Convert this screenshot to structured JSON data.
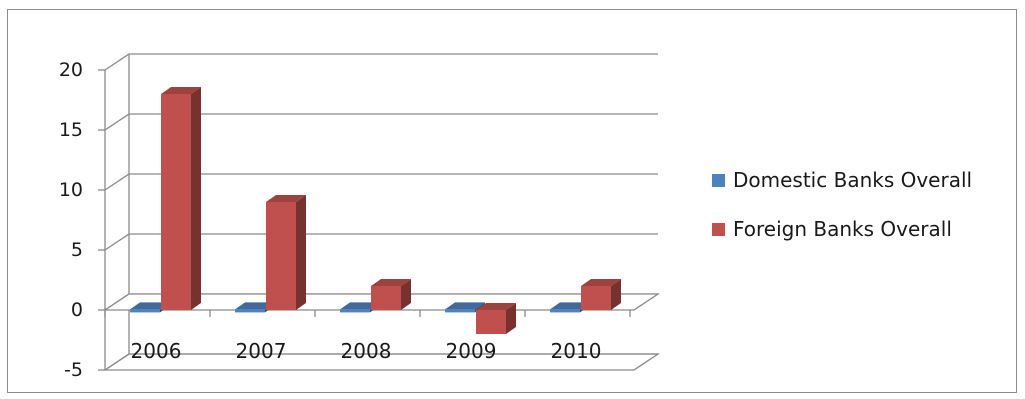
{
  "chart_data": {
    "type": "bar",
    "title": "",
    "xlabel": "",
    "ylabel": "",
    "categories": [
      "2006",
      "2007",
      "2008",
      "2009",
      "2010"
    ],
    "ylim": [
      -5,
      20
    ],
    "yticks": [
      "20",
      "15",
      "10",
      "5",
      "0",
      "-5"
    ],
    "grid": true,
    "legend_position": "right",
    "series": [
      {
        "name": "Domestic Banks Overall",
        "values": [
          0.05,
          0.05,
          0.05,
          0.05,
          0.05
        ],
        "color": "#4f81bd"
      },
      {
        "name": "Foreign Banks Overall",
        "values": [
          18,
          9,
          2,
          -2,
          2
        ],
        "color": "#c0504d"
      }
    ]
  }
}
